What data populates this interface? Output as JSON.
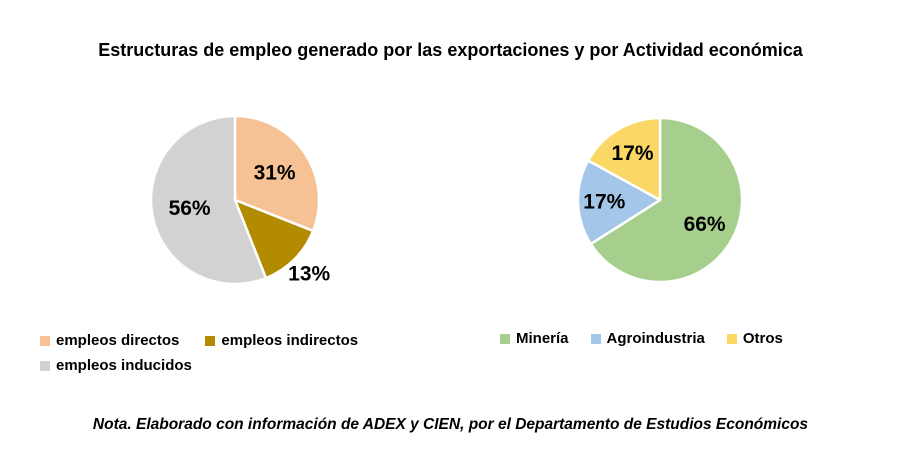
{
  "figure_title": "Estructuras de empleo generado por las exportaciones y por Actividad económica",
  "note": "Nota. Elaborado con información de ADEX y CIEN, por el Departamento de Estudios Económicos",
  "chart_data": [
    {
      "name": "empleo-generado-por-exportaciones",
      "type": "pie",
      "categories": [
        "empleos directos",
        "empleos indirectos",
        "empleos inducidos"
      ],
      "values": [
        31,
        13,
        56
      ],
      "labels": [
        "31%",
        "13%",
        "56%"
      ],
      "colors": [
        "#F5C195",
        "#B38B00",
        "#D3D2D2"
      ],
      "start_angle_deg": 0,
      "direction": "clockwise",
      "legend_position": "bottom",
      "label_radius": [
        0.57,
        1.25,
        0.55
      ]
    },
    {
      "name": "empleo-por-actividad-economica",
      "type": "pie",
      "categories": [
        "Minería",
        "Agroindustria",
        "Otros"
      ],
      "values": [
        66,
        17,
        17
      ],
      "labels": [
        "66%",
        "17%",
        "17%"
      ],
      "colors": [
        "#A6CF8D",
        "#A3C6E9",
        "#FBD765"
      ],
      "start_angle_deg": 0,
      "direction": "clockwise",
      "legend_position": "bottom",
      "label_radius": [
        0.62,
        0.68,
        0.66
      ]
    }
  ]
}
